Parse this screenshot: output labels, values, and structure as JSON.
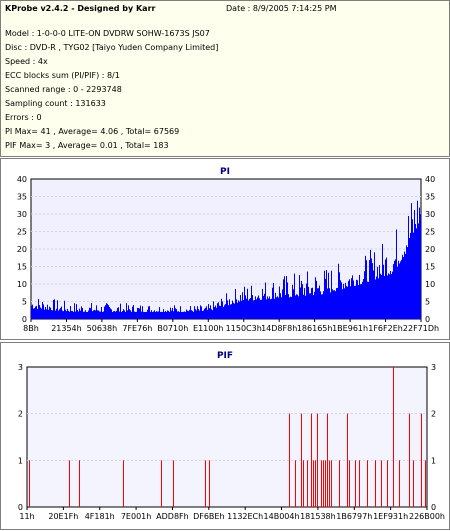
{
  "header": {
    "title": "KProbe v2.4.2 - Designed by Karr",
    "date": "Date : 8/9/2005 7:14:25 PM"
  },
  "info_lines": [
    "Model : 1-0-0-0 LITE-ON DVDRW SOHW-1673S JS07",
    "Disc : DVD-R , TYG02 [Taiyo Yuden Company Limited]",
    "Speed : 4x",
    "ECC blocks sum (PI/PIF) : 8/1",
    "Scanned range : 0 - 2293748",
    "Sampling count : 131633",
    "Errors : 0",
    "PI Max= 41 , Average= 4.06 , Total= 67569",
    "PIF Max= 3 , Average= 0.01 , Total= 183"
  ],
  "colors": {
    "pi_bar": "#0000ff",
    "pif_bar": "#ff0000",
    "plot_bg": "#f0f0ff",
    "pif_plot_bg": "#f4f4ff",
    "title": "#000080"
  },
  "chart_data": [
    {
      "type": "bar",
      "title": "PI",
      "ylim": [
        0,
        40
      ],
      "y_ticks": [
        0,
        5,
        10,
        15,
        20,
        25,
        30,
        35,
        40
      ],
      "x_tick_labels": [
        "8Bh",
        "21354h",
        "50638h",
        "7FE76h",
        "B0710h",
        "E1100h",
        "1150C3h",
        "14D8F8h",
        "186165h",
        "1BE961h",
        "1F6F2Eh",
        "22F71Dh"
      ],
      "profile": [
        {
          "position": 0.0,
          "base": 3,
          "peak": 7
        },
        {
          "position": 0.1,
          "base": 2,
          "peak": 5
        },
        {
          "position": 0.45,
          "base": 2,
          "peak": 4
        },
        {
          "position": 0.54,
          "base": 5,
          "peak": 10
        },
        {
          "position": 0.65,
          "base": 6,
          "peak": 13
        },
        {
          "position": 0.75,
          "base": 7,
          "peak": 15
        },
        {
          "position": 0.85,
          "base": 10,
          "peak": 18
        },
        {
          "position": 0.93,
          "base": 13,
          "peak": 25
        },
        {
          "position": 0.97,
          "base": 20,
          "peak": 35
        },
        {
          "position": 1.0,
          "base": 28,
          "peak": 41
        }
      ]
    },
    {
      "type": "bar",
      "title": "PIF",
      "ylim": [
        0,
        3
      ],
      "y_ticks": [
        0,
        1,
        2,
        3
      ],
      "x_tick_labels": [
        "11h",
        "20E1Fh",
        "4F181h",
        "7E001h",
        "ADD8Fh",
        "DF6BEh",
        "1132ECh",
        "14B004h",
        "181538h",
        "1B6797h",
        "1EF931h",
        "226B00h"
      ],
      "spikes": [
        {
          "position": 0.005,
          "value": 1
        },
        {
          "position": 0.105,
          "value": 1
        },
        {
          "position": 0.13,
          "value": 1
        },
        {
          "position": 0.24,
          "value": 1
        },
        {
          "position": 0.335,
          "value": 1
        },
        {
          "position": 0.365,
          "value": 1
        },
        {
          "position": 0.445,
          "value": 1
        },
        {
          "position": 0.455,
          "value": 1
        },
        {
          "position": 0.655,
          "value": 2
        },
        {
          "position": 0.67,
          "value": 1
        },
        {
          "position": 0.685,
          "value": 2
        },
        {
          "position": 0.69,
          "value": 1
        },
        {
          "position": 0.7,
          "value": 1
        },
        {
          "position": 0.71,
          "value": 2
        },
        {
          "position": 0.715,
          "value": 1
        },
        {
          "position": 0.72,
          "value": 1
        },
        {
          "position": 0.725,
          "value": 2
        },
        {
          "position": 0.735,
          "value": 1
        },
        {
          "position": 0.74,
          "value": 1
        },
        {
          "position": 0.745,
          "value": 1
        },
        {
          "position": 0.75,
          "value": 2
        },
        {
          "position": 0.755,
          "value": 1
        },
        {
          "position": 0.76,
          "value": 1
        },
        {
          "position": 0.78,
          "value": 1
        },
        {
          "position": 0.8,
          "value": 2
        },
        {
          "position": 0.805,
          "value": 1
        },
        {
          "position": 0.82,
          "value": 1
        },
        {
          "position": 0.83,
          "value": 1
        },
        {
          "position": 0.85,
          "value": 1
        },
        {
          "position": 0.87,
          "value": 1
        },
        {
          "position": 0.885,
          "value": 1
        },
        {
          "position": 0.9,
          "value": 1
        },
        {
          "position": 0.915,
          "value": 3
        },
        {
          "position": 0.93,
          "value": 1
        },
        {
          "position": 0.955,
          "value": 2
        },
        {
          "position": 0.965,
          "value": 1
        },
        {
          "position": 0.985,
          "value": 2
        },
        {
          "position": 0.995,
          "value": 1
        }
      ]
    }
  ]
}
